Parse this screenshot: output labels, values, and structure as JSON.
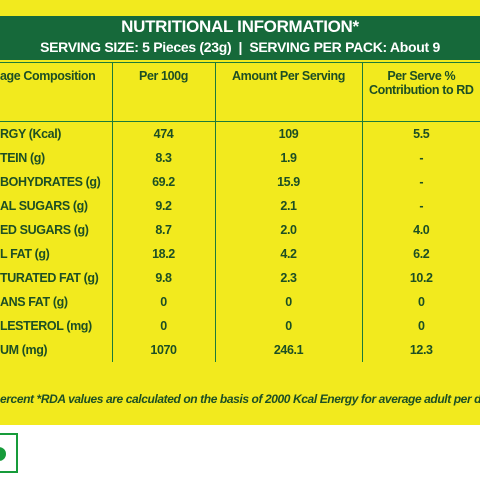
{
  "header": {
    "title": "NUTRITIONAL INFORMATION*",
    "serving": "SERVING SIZE: 5 Pieces (23g)  |  SERVING PER PACK: About 9"
  },
  "table": {
    "columns": [
      "age Composition",
      "Per 100g",
      "Amount Per Serving",
      "Per Serve % Contribution to RD"
    ],
    "rows": [
      [
        "RGY (Kcal)",
        "474",
        "109",
        "5.5"
      ],
      [
        "TEIN (g)",
        "8.3",
        "1.9",
        "-"
      ],
      [
        "BOHYDRATES (g)",
        "69.2",
        "15.9",
        "-"
      ],
      [
        "AL SUGARS (g)",
        "9.2",
        "2.1",
        "-"
      ],
      [
        "ED SUGARS (g)",
        "8.7",
        "2.0",
        "4.0"
      ],
      [
        "L FAT (g)",
        "18.2",
        "4.2",
        "6.2"
      ],
      [
        "TURATED FAT (g)",
        "9.8",
        "2.3",
        "10.2"
      ],
      [
        "ANS FAT (g)",
        "0",
        "0",
        "0"
      ],
      [
        "LESTEROL (mg)",
        "0",
        "0",
        "0"
      ],
      [
        "UM (mg)",
        "1070",
        "246.1",
        "12.3"
      ]
    ]
  },
  "footer": {
    "note": "ercent *RDA values are calculated on the basis of 2000 Kcal Energy for average adult per d"
  }
}
